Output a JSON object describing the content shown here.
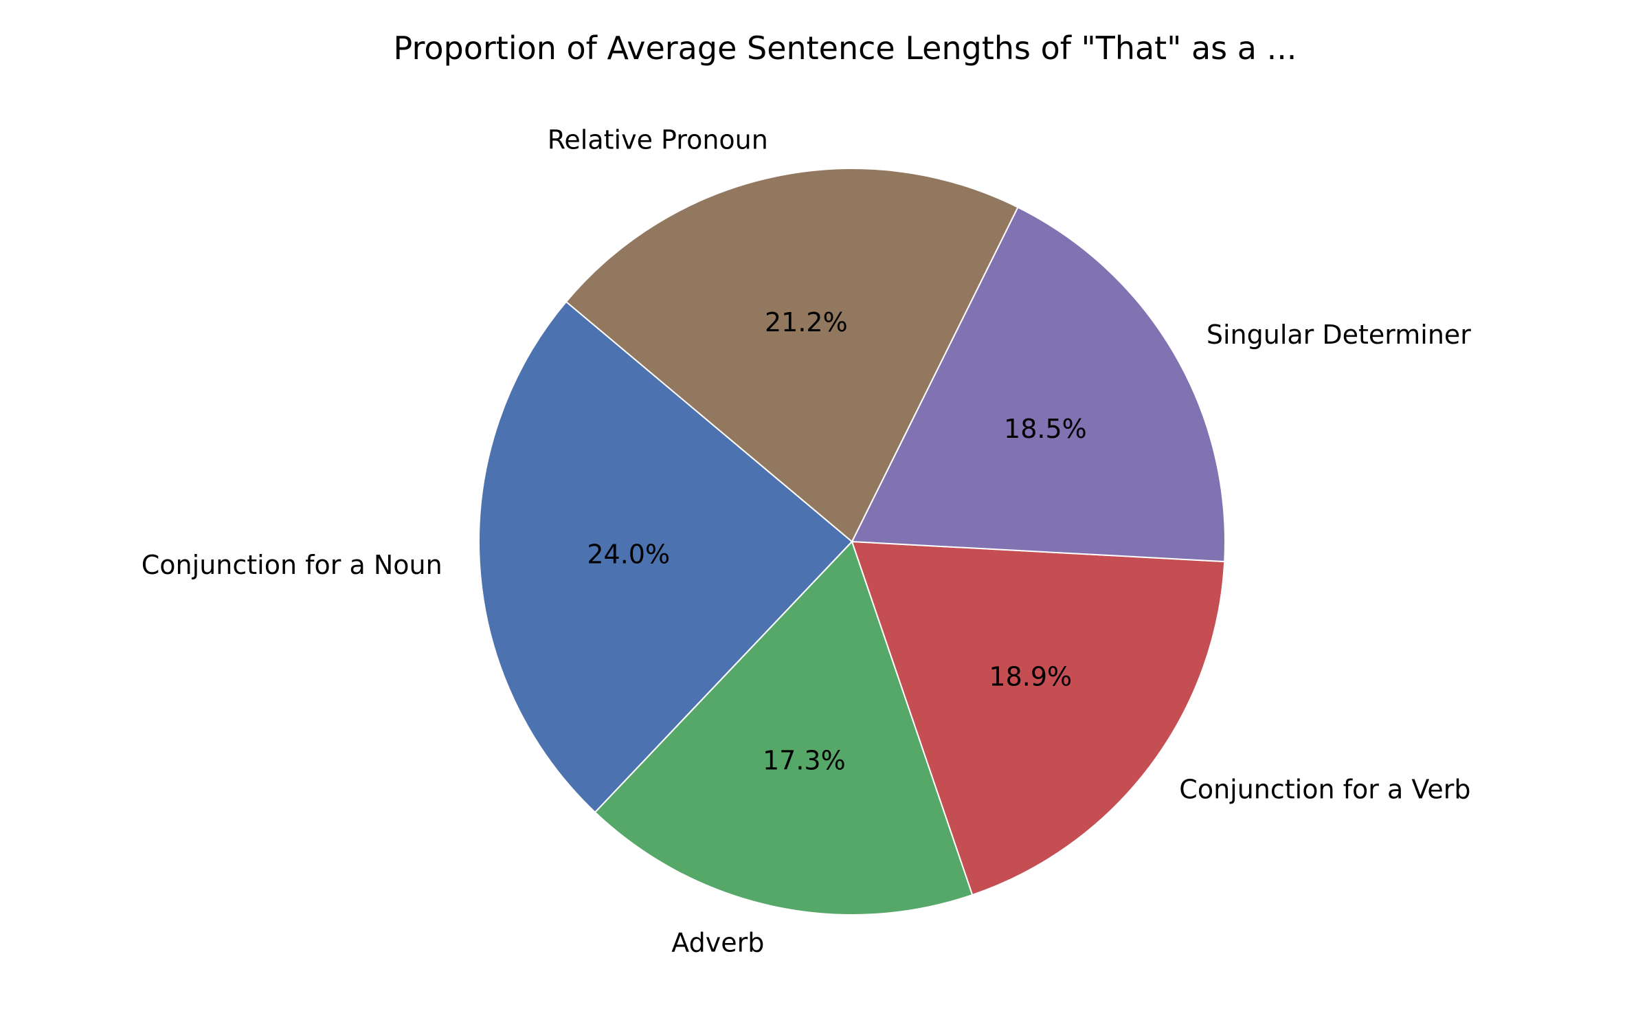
{
  "chart_data": {
    "type": "pie",
    "title": "Proportion of Average Sentence Lengths of \"That\" as a ...",
    "start_angle_deg": 140,
    "direction": "counterclockwise",
    "slices": [
      {
        "label": "Conjunction for a Noun",
        "value": 24.0,
        "pct_text": "24.0%",
        "color": "#4c72b0"
      },
      {
        "label": "Adverb",
        "value": 17.3,
        "pct_text": "17.3%",
        "color": "#55a868"
      },
      {
        "label": "Conjunction for a Verb",
        "value": 18.9,
        "pct_text": "18.9%",
        "color": "#c44e52"
      },
      {
        "label": "Singular Determiner",
        "value": 18.5,
        "pct_text": "18.5%",
        "color": "#8172b2"
      },
      {
        "label": "Relative Pronoun",
        "value": 21.2,
        "pct_text": "21.2%",
        "color": "#937860"
      }
    ]
  }
}
